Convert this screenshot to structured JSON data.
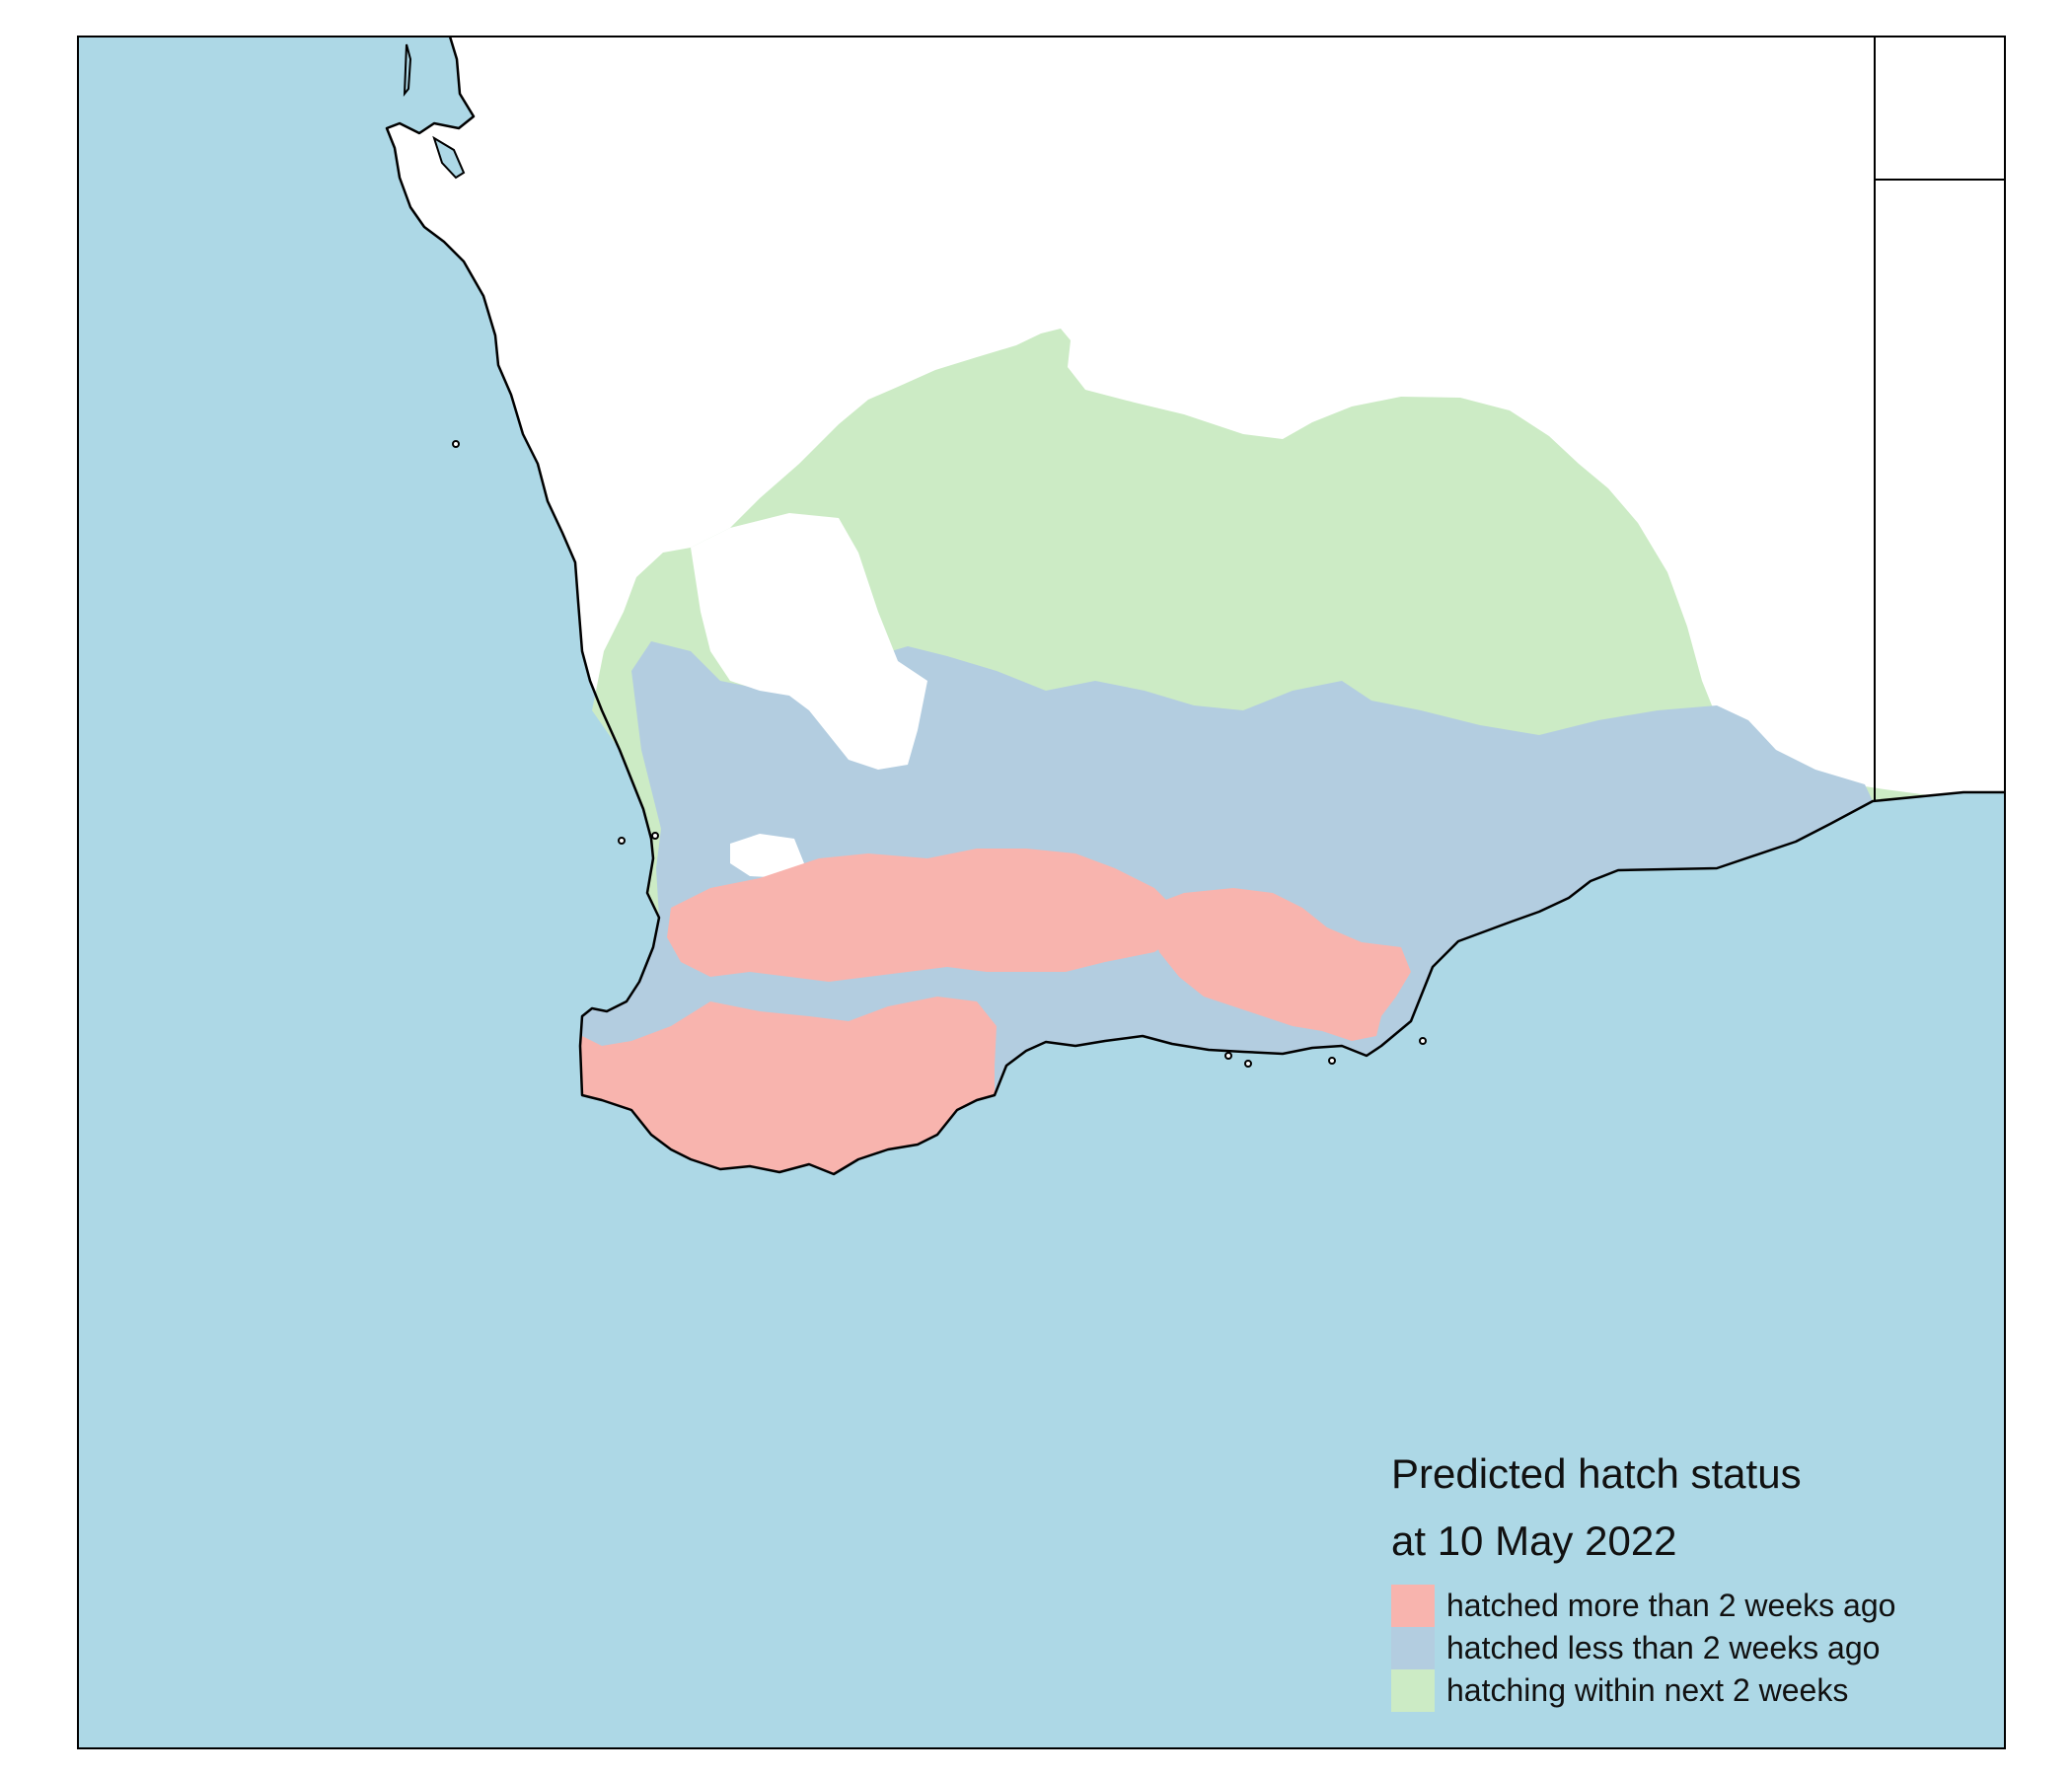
{
  "map": {
    "colors": {
      "ocean": "#add8e6",
      "land_no_data": "#ffffff",
      "border": "#000000"
    }
  },
  "legend": {
    "title_line1": "Predicted hatch status",
    "title_line2": "at 10 May 2022",
    "items": [
      {
        "label": "hatched more than 2 weeks ago",
        "color": "#f8b4ae"
      },
      {
        "label": "hatched less than 2 weeks ago",
        "color": "#b3cde0"
      },
      {
        "label": "hatching within next 2 weeks",
        "color": "#ccebc5"
      }
    ]
  }
}
